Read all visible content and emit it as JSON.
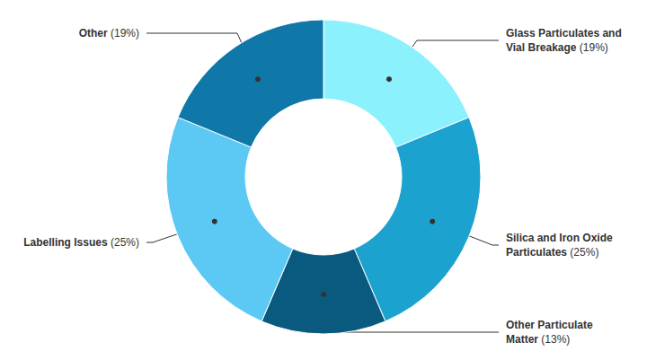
{
  "chart_data": {
    "type": "donut",
    "categories": [
      "Glass Particulates and Vial Breakage",
      "Silica and Iron Oxide Particulates",
      "Other Particulate Matter",
      "Labelling Issues",
      "Other"
    ],
    "values": [
      19,
      25,
      13,
      25,
      19
    ],
    "value_labels": [
      "(19%)",
      "(25%)",
      "(13%)",
      "(25%)",
      "(19%)"
    ],
    "colors": [
      "#8af1fd",
      "#1ca2cf",
      "#0a5a80",
      "#5bc9f4",
      "#0f78a9"
    ],
    "data_labels": true
  }
}
